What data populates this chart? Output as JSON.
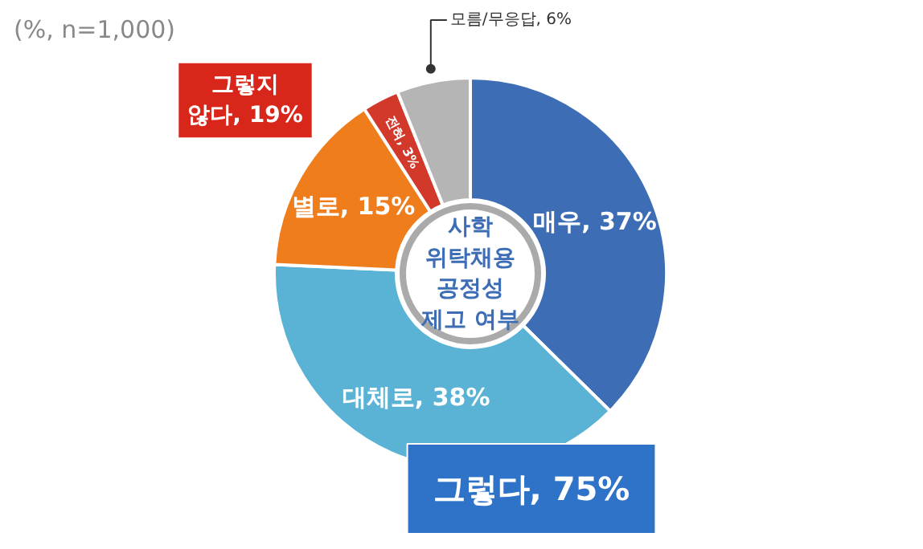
{
  "chart_data": {
    "type": "donut",
    "title": "사학\n위탁채용\n공정성\n제고 여부",
    "categories": [
      "매우",
      "대체로",
      "별로",
      "전혀",
      "모름/무응답"
    ],
    "values": [
      37,
      38,
      15,
      3,
      6
    ],
    "value_labels": [
      "37%",
      "38%",
      "15%",
      "3%",
      "6%"
    ],
    "colors": [
      "#3d6db5",
      "#5ab3d5",
      "#ef7d1c",
      "#d2392b",
      "#b5b5b5"
    ],
    "annotations": [
      "(%, n=1,000)",
      "그렇지\n않다, 19%",
      "그렇다, 75%"
    ]
  }
}
